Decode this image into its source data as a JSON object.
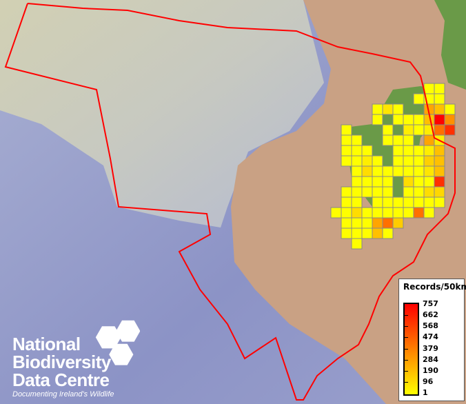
{
  "legend": {
    "title": "Records/50km",
    "labels": [
      "757",
      "662",
      "568",
      "474",
      "379",
      "284",
      "190",
      "96",
      "1"
    ],
    "ramp_colors": [
      "#ff0000",
      "#ff8000",
      "#ffff00"
    ]
  },
  "logo": {
    "line1": "National",
    "line2": "Biodiversity",
    "line3": "Data Centre",
    "tagline": "Documenting Ireland's Wildlife"
  },
  "colors": {
    "boundary": "#ff0000",
    "grid_outline": "#888888",
    "land": "#c9a184",
    "ocean": "#8f97c8",
    "vegetation": "#6a9a48"
  },
  "grid_cells": [
    [
      [
        9,
        "#ffff00"
      ],
      [
        10,
        "#ffff00"
      ]
    ],
    [
      [
        8,
        "#ffff00"
      ],
      [
        9,
        "#ffff00"
      ],
      [
        10,
        "#ffff00"
      ]
    ],
    [
      [
        4,
        "#ffff00"
      ],
      [
        5,
        "#ffe600"
      ],
      [
        6,
        "#ffff00"
      ],
      [
        9,
        "#ffa500"
      ],
      [
        10,
        "#ffc000"
      ],
      [
        11,
        "#ffff00"
      ]
    ],
    [
      [
        4,
        "#ffff00"
      ],
      [
        6,
        "#ffff00"
      ],
      [
        7,
        "#ffff00"
      ],
      [
        8,
        "#ffff00"
      ],
      [
        9,
        "#ffc000"
      ],
      [
        10,
        "#ff0000"
      ],
      [
        11,
        "#ff9000"
      ]
    ],
    [
      [
        1,
        "#ffff00"
      ],
      [
        5,
        "#ffff00"
      ],
      [
        7,
        "#ffee00"
      ],
      [
        8,
        "#ffff00"
      ],
      [
        9,
        "#ffee00"
      ],
      [
        10,
        "#ff7000"
      ],
      [
        11,
        "#ff3000"
      ]
    ],
    [
      [
        1,
        "#ffff00"
      ],
      [
        2,
        "#ffff00"
      ],
      [
        5,
        "#ffff00"
      ],
      [
        6,
        "#ffff00"
      ],
      [
        7,
        "#ffff00"
      ],
      [
        9,
        "#ffa500"
      ],
      [
        10,
        "#ffee00"
      ]
    ],
    [
      [
        1,
        "#ffff00"
      ],
      [
        2,
        "#ffff00"
      ],
      [
        3,
        "#ffff00"
      ],
      [
        6,
        "#ffff00"
      ],
      [
        7,
        "#ffff00"
      ],
      [
        8,
        "#ffff00"
      ],
      [
        9,
        "#ffee00"
      ],
      [
        10,
        "#ffc000"
      ]
    ],
    [
      [
        1,
        "#ffff00"
      ],
      [
        2,
        "#ffff00"
      ],
      [
        3,
        "#ffee00"
      ],
      [
        4,
        "#ffff00"
      ],
      [
        6,
        "#ffff00"
      ],
      [
        7,
        "#ffff00"
      ],
      [
        8,
        "#ffff00"
      ],
      [
        9,
        "#ffd000"
      ],
      [
        10,
        "#ffc000"
      ]
    ],
    [
      [
        2,
        "#ffff00"
      ],
      [
        3,
        "#ffdd00"
      ],
      [
        4,
        "#ffff00"
      ],
      [
        5,
        "#ffff00"
      ],
      [
        6,
        "#ffff00"
      ],
      [
        7,
        "#ffff00"
      ],
      [
        8,
        "#ffff00"
      ],
      [
        9,
        "#ffe600"
      ],
      [
        10,
        "#ffc000"
      ]
    ],
    [
      [
        2,
        "#ffff00"
      ],
      [
        3,
        "#ffff00"
      ],
      [
        4,
        "#ffff00"
      ],
      [
        5,
        "#ffff00"
      ],
      [
        7,
        "#ffdd00"
      ],
      [
        8,
        "#ffff00"
      ],
      [
        9,
        "#ffff00"
      ],
      [
        10,
        "#ff3000"
      ]
    ],
    [
      [
        1,
        "#ffff00"
      ],
      [
        2,
        "#ffff00"
      ],
      [
        3,
        "#ffff00"
      ],
      [
        4,
        "#ffff00"
      ],
      [
        5,
        "#ffff00"
      ],
      [
        7,
        "#ffff00"
      ],
      [
        8,
        "#ffff00"
      ],
      [
        9,
        "#ffdd00"
      ],
      [
        10,
        "#ffd700"
      ]
    ],
    [
      [
        1,
        "#ffff00"
      ],
      [
        2,
        "#ffff00"
      ],
      [
        4,
        "#ffff00"
      ],
      [
        5,
        "#ffff00"
      ],
      [
        6,
        "#ffff00"
      ],
      [
        7,
        "#ffff00"
      ],
      [
        8,
        "#ffff00"
      ],
      [
        9,
        "#ffff00"
      ],
      [
        10,
        "#ffff00"
      ]
    ],
    [
      [
        0,
        "#ffff00"
      ],
      [
        1,
        "#ffff00"
      ],
      [
        2,
        "#ffdd00"
      ],
      [
        3,
        "#ffff00"
      ],
      [
        4,
        "#ffff00"
      ],
      [
        5,
        "#ffff00"
      ],
      [
        6,
        "#ffff00"
      ],
      [
        7,
        "#ffff00"
      ],
      [
        8,
        "#ff7000"
      ],
      [
        9,
        "#ffff00"
      ]
    ],
    [
      [
        1,
        "#ffff00"
      ],
      [
        2,
        "#ffff00"
      ],
      [
        3,
        "#ffff00"
      ],
      [
        4,
        "#ffa500"
      ],
      [
        5,
        "#ff7000"
      ],
      [
        6,
        "#ffcc00"
      ]
    ],
    [
      [
        1,
        "#ffff00"
      ],
      [
        2,
        "#ffff00"
      ],
      [
        3,
        "#ffff00"
      ],
      [
        4,
        "#ffc000"
      ],
      [
        5,
        "#ffff00"
      ]
    ],
    [
      [
        2,
        "#ffff00"
      ]
    ]
  ]
}
